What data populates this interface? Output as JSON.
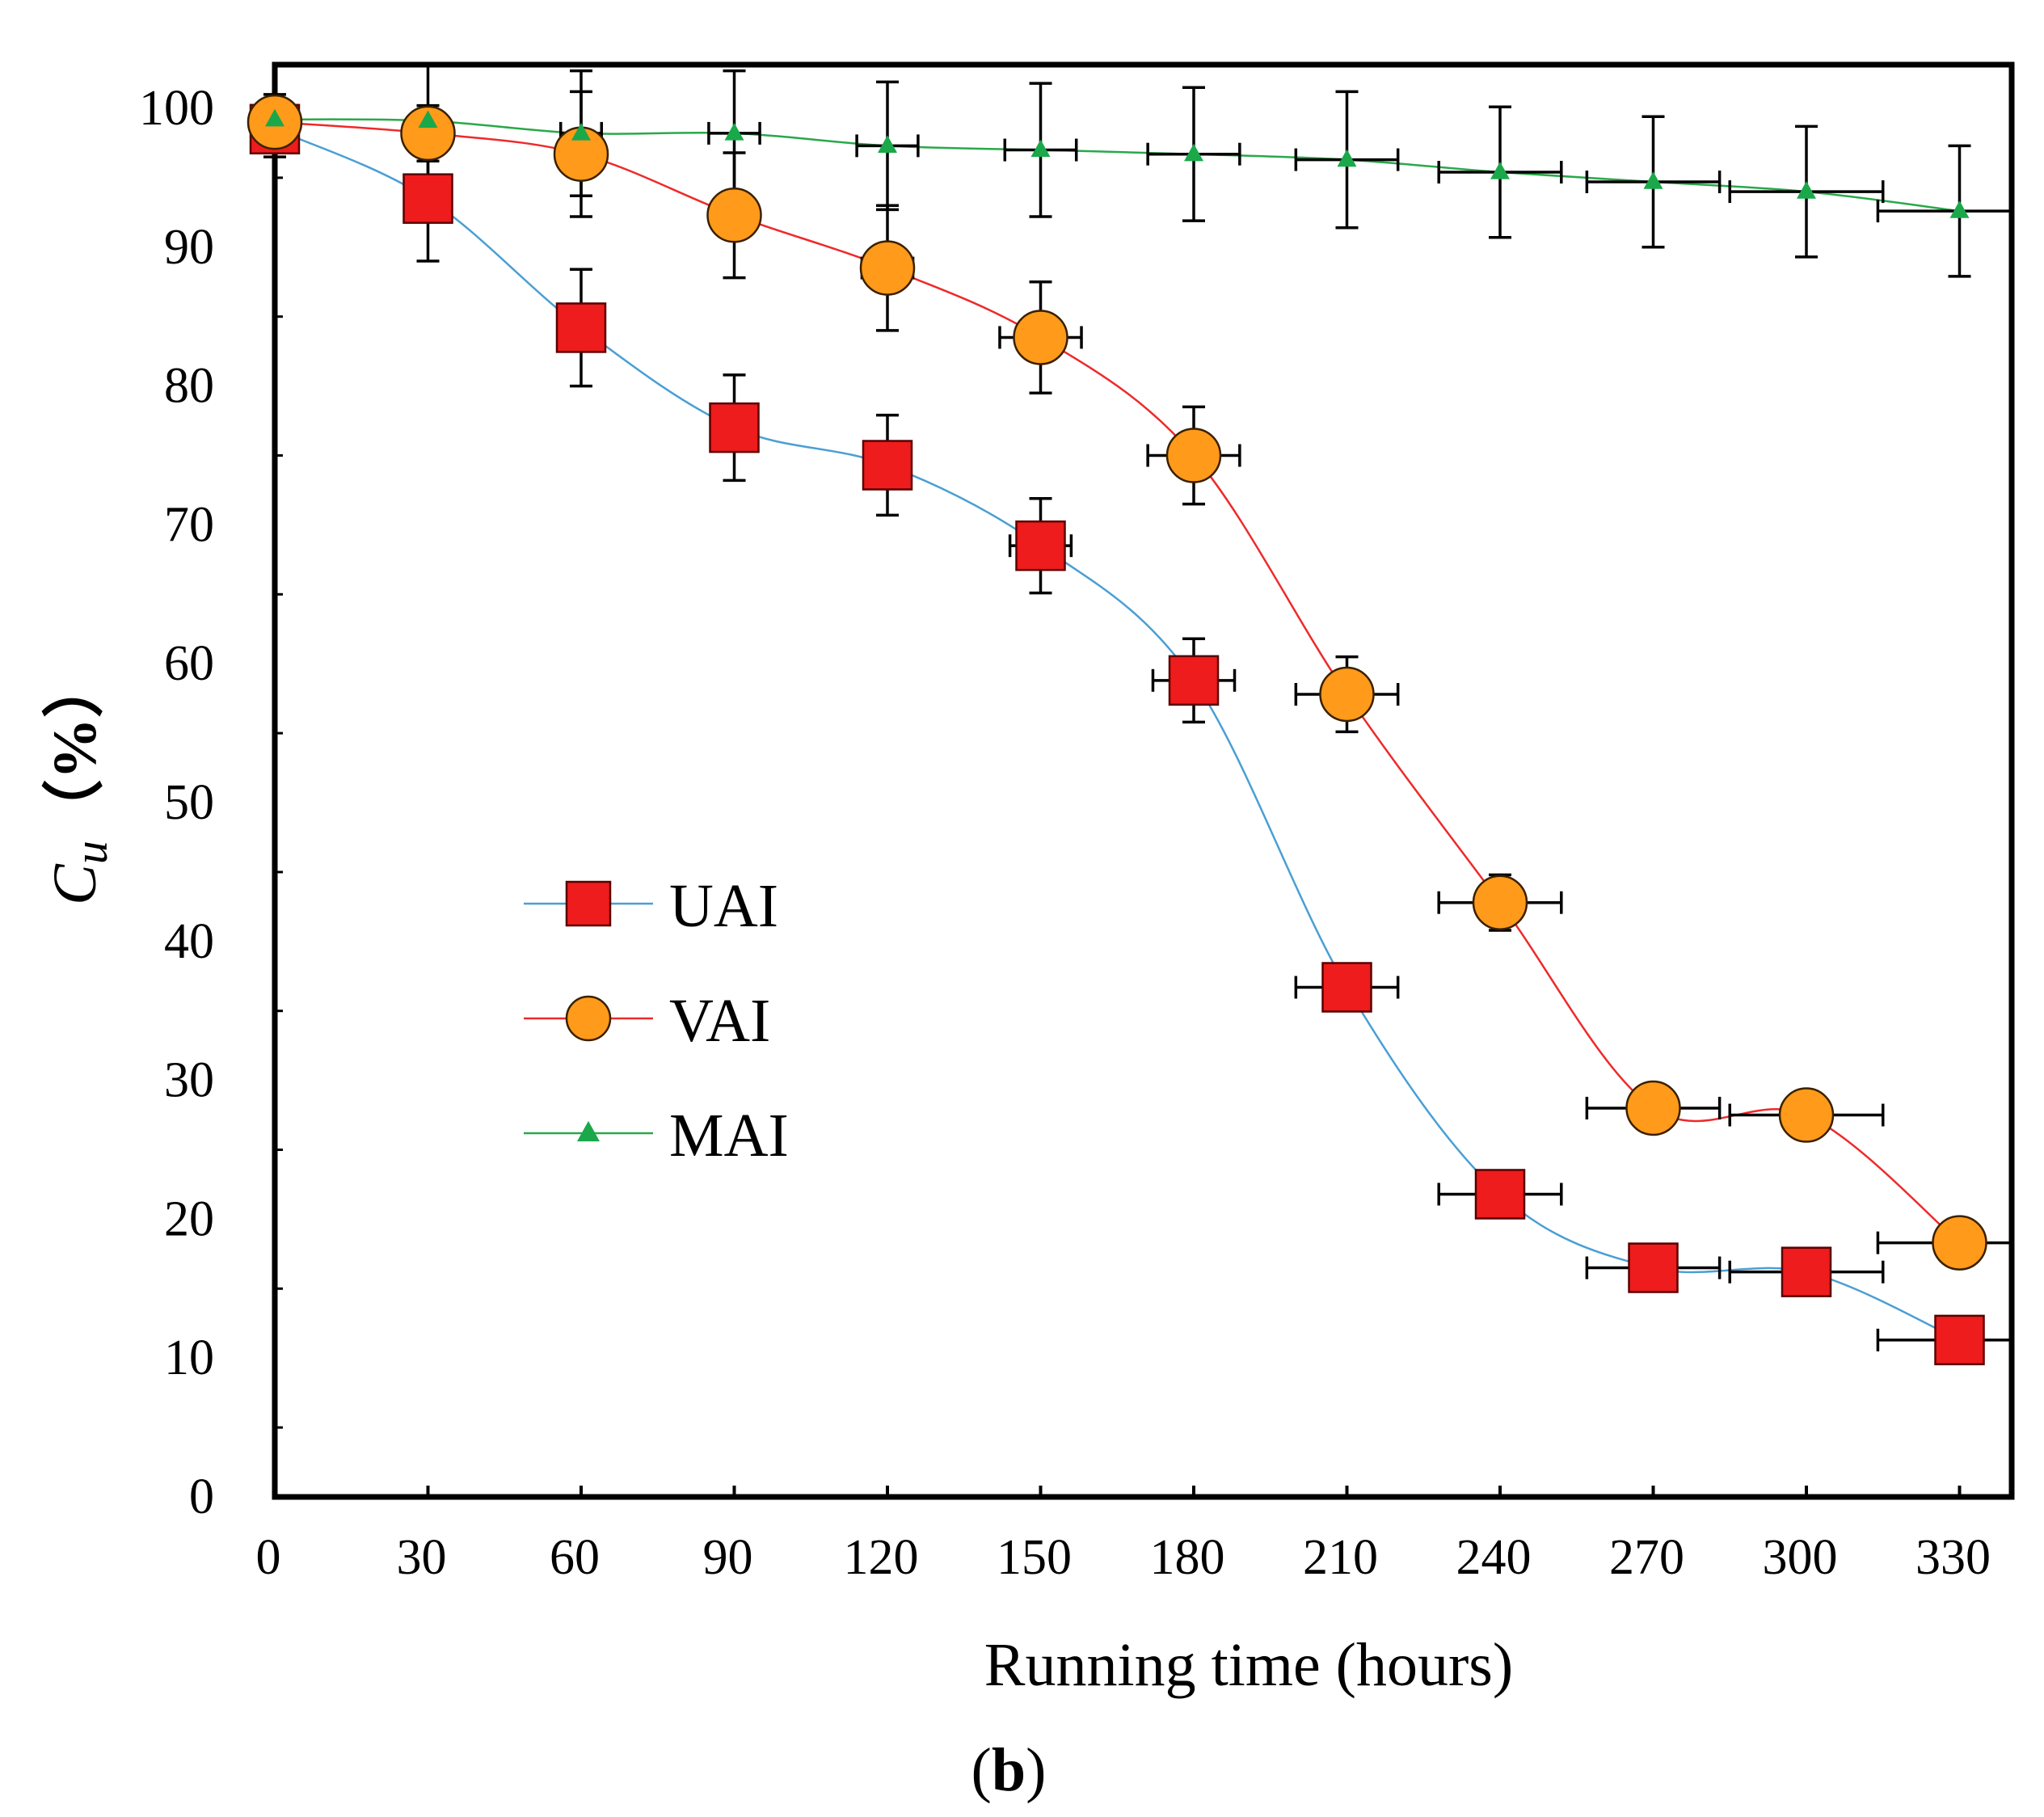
{
  "chart_data": {
    "type": "line",
    "xlabel": "Running time (hours)",
    "ylabel_main": "C",
    "ylabel_sub": "u",
    "ylabel_suffix": "（%）",
    "panel_label": "(b)",
    "panel_letter": "b",
    "x": [
      0,
      30,
      60,
      90,
      120,
      150,
      180,
      210,
      240,
      270,
      300,
      330
    ],
    "xlim": [
      0,
      340
    ],
    "ylim": [
      0,
      100
    ],
    "xticks": [
      "0",
      "30",
      "60",
      "90",
      "120",
      "150",
      "180",
      "210",
      "240",
      "270",
      "300",
      "330"
    ],
    "yticks": [
      "0",
      "10",
      "20",
      "30",
      "40",
      "50",
      "60",
      "70",
      "80",
      "90",
      "100"
    ],
    "legend_position": "left-center",
    "series": [
      {
        "name": "UAI",
        "marker": "square",
        "line_color": "#4a9fd4",
        "marker_color": "#ee1c1c",
        "values": [
          98.5,
          93.5,
          84.2,
          77.0,
          74.3,
          68.5,
          58.8,
          36.7,
          21.8,
          16.5,
          16.2,
          11.3
        ],
        "y_err": [
          2.0,
          4.5,
          4.2,
          3.8,
          3.6,
          3.4,
          3.0,
          1.2,
          0.3,
          0.3,
          0.3,
          0.3
        ],
        "x_err": [
          0,
          0,
          0,
          0,
          4,
          6,
          8,
          10,
          12,
          13,
          15,
          16
        ]
      },
      {
        "name": "VAI",
        "marker": "circle",
        "line_color": "#ee2a2a",
        "marker_color": "#ff9a1a",
        "values": [
          99.0,
          98.2,
          96.7,
          92.3,
          88.5,
          83.5,
          75.0,
          57.8,
          42.8,
          28.0,
          27.5,
          18.3
        ],
        "y_err": [
          2.0,
          2.0,
          4.5,
          4.5,
          4.5,
          4.0,
          3.5,
          2.7,
          2.0,
          0.3,
          0.3,
          0.3
        ],
        "x_err": [
          0,
          0,
          0,
          0,
          5,
          8,
          9,
          10,
          12,
          13,
          15,
          16
        ]
      },
      {
        "name": "MAI",
        "marker": "triangle",
        "line_color": "#2aa84a",
        "marker_color": "#1aa84a",
        "values": [
          99.2,
          99.1,
          98.2,
          98.2,
          97.3,
          97.0,
          96.7,
          96.3,
          95.4,
          94.7,
          94.0,
          92.6
        ],
        "y_err": [
          1.0,
          4.5,
          4.5,
          4.5,
          4.6,
          4.8,
          4.8,
          4.9,
          4.7,
          4.7,
          4.7,
          4.7
        ],
        "x_err": [
          0,
          0,
          4,
          5,
          6,
          7,
          9,
          10,
          12,
          13,
          15,
          16
        ]
      }
    ]
  }
}
